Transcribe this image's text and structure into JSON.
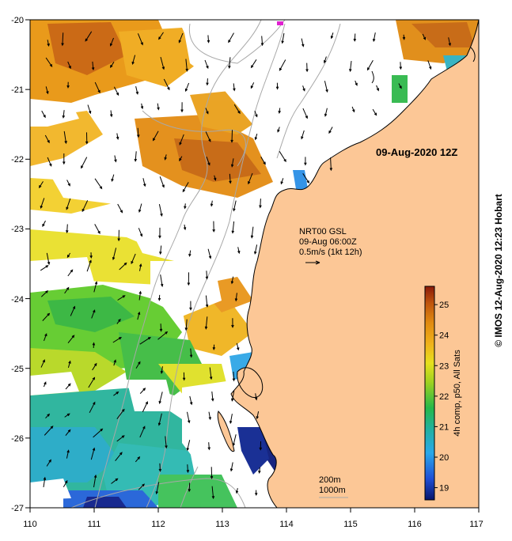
{
  "map": {
    "date_label": "09-Aug-2020 12Z",
    "current_info": {
      "line1": "NRT00 GSL",
      "line2": "09-Aug 06:00Z",
      "line3": "0.5m/s (1kt 12h)"
    },
    "scale": {
      "line1": "200m",
      "line2": "1000m"
    },
    "colorbar": {
      "label": "4h comp, p50, All Sats",
      "ticks": [
        "19",
        "20",
        "21",
        "22",
        "23",
        "24",
        "25"
      ],
      "range": [
        18.6,
        25.6
      ],
      "colors": [
        "#08156b",
        "#1f4fd6",
        "#29a8ea",
        "#22b0a0",
        "#25b84a",
        "#9ed120",
        "#e6e01e",
        "#f0b21a",
        "#e08a10",
        "#c0560c",
        "#8a1a0a"
      ]
    },
    "x_ticks": [
      "110",
      "111",
      "112",
      "113",
      "114",
      "115",
      "116",
      "117"
    ],
    "y_ticks": [
      "-20",
      "-21",
      "-22",
      "-23",
      "-24",
      "-25",
      "-26",
      "-27"
    ],
    "credit": "© IMOS 12-Aug-2020 12:23 Hobart",
    "land_color": "#fcc796"
  }
}
